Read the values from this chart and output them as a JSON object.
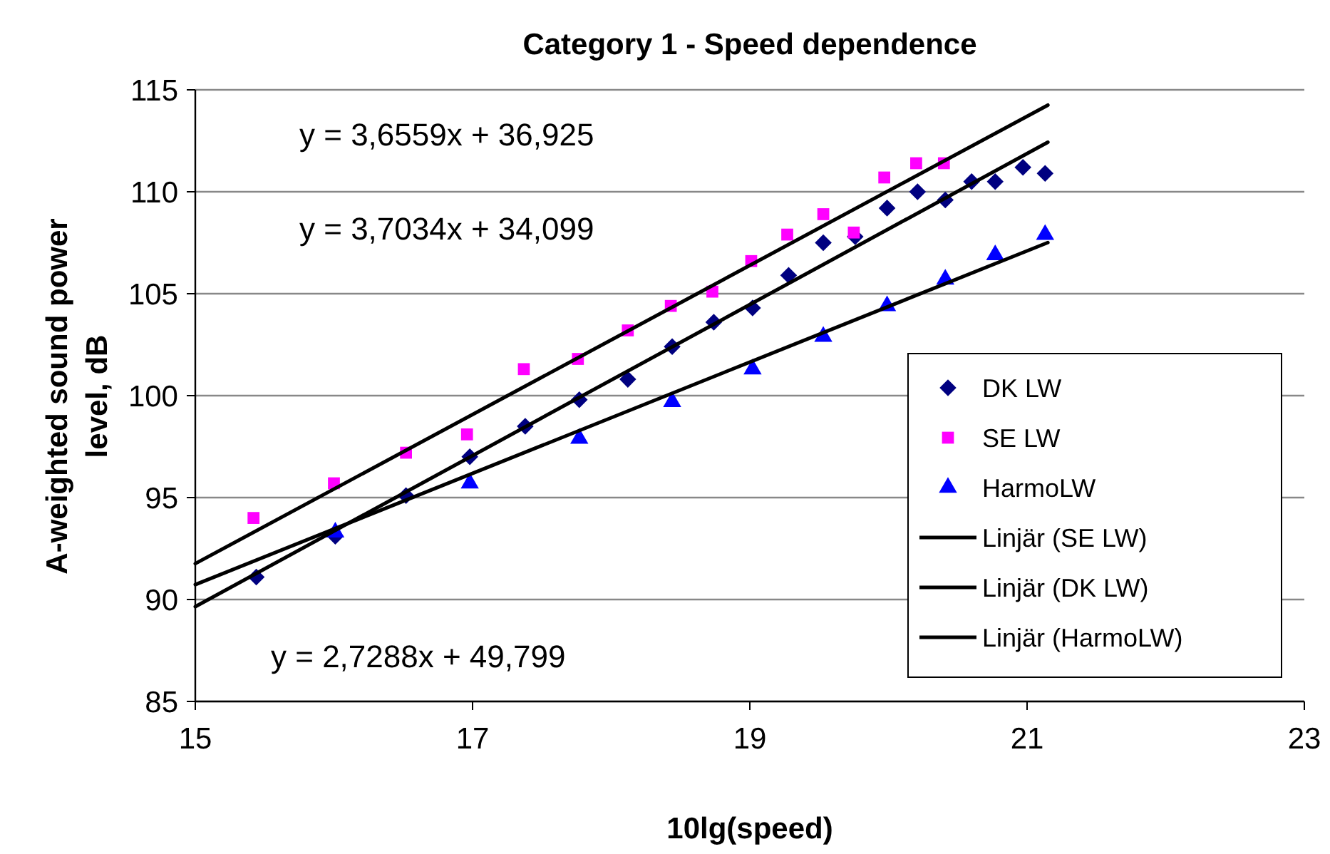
{
  "chart_data": {
    "type": "scatter",
    "title": "Category 1 - Speed dependence",
    "xlabel": "10lg(speed)",
    "ylabel": "A-weighted sound power level, dB",
    "xlim": [
      15,
      23
    ],
    "xticks": [
      15,
      17,
      19,
      21,
      23
    ],
    "ylim": [
      85,
      115
    ],
    "yticks": [
      85,
      90,
      95,
      100,
      105,
      110,
      115
    ],
    "grid": "y",
    "legend": "right",
    "annotations": [
      "y = 3,6559x + 36,925",
      "y = 3,7034x + 34,099",
      "y = 2,7288x + 49,799"
    ],
    "series": [
      {
        "name": "DK LW",
        "marker": "diamond",
        "color": "#000080",
        "x": [
          15.44,
          16.01,
          16.52,
          16.98,
          17.38,
          17.77,
          18.12,
          18.44,
          18.74,
          19.02,
          19.28,
          19.53,
          19.76,
          19.99,
          20.21,
          20.41,
          20.6,
          20.77,
          20.97,
          21.13
        ],
        "values": [
          91.1,
          93.1,
          95.1,
          97,
          98.5,
          99.8,
          100.8,
          102.4,
          103.6,
          104.3,
          105.9,
          107.5,
          107.8,
          109.2,
          110,
          109.6,
          110.5,
          110.5,
          111.2,
          110.9
        ]
      },
      {
        "name": "SE LW",
        "marker": "square",
        "color": "#ff00ff",
        "x": [
          15.42,
          16.0,
          16.52,
          16.96,
          17.37,
          17.76,
          18.12,
          18.43,
          18.73,
          19.01,
          19.27,
          19.53,
          19.75,
          19.97,
          20.2,
          20.4
        ],
        "values": [
          94,
          95.7,
          97.2,
          98.1,
          101.3,
          101.8,
          103.2,
          104.4,
          105.1,
          106.6,
          107.9,
          108.9,
          108,
          110.7,
          111.4,
          111.4
        ]
      },
      {
        "name": "HarmoLW",
        "marker": "triangle",
        "color": "#0000ff",
        "x": [
          16.01,
          16.98,
          17.77,
          18.44,
          19.02,
          19.53,
          19.99,
          20.41,
          20.77,
          21.13
        ],
        "values": [
          93.3,
          95.7,
          97.9,
          99.7,
          101.3,
          102.9,
          104.4,
          105.7,
          106.9,
          107.9
        ]
      },
      {
        "name": "Linjär (SE LW)",
        "type": "line",
        "marker": "none",
        "line_style": "solid",
        "color": "#000000",
        "x": [
          15,
          21.15
        ],
        "values": [
          91.76,
          114.25
        ]
      },
      {
        "name": "Linjär (DK LW)",
        "type": "line",
        "marker": "none",
        "line_style": "solid",
        "color": "#000000",
        "x": [
          15,
          21.15
        ],
        "values": [
          89.65,
          112.43
        ]
      },
      {
        "name": "Linjär (HarmoLW)",
        "type": "line",
        "marker": "none",
        "line_style": "solid",
        "color": "#000000",
        "x": [
          15,
          21.15
        ],
        "values": [
          90.73,
          107.51
        ]
      }
    ]
  }
}
